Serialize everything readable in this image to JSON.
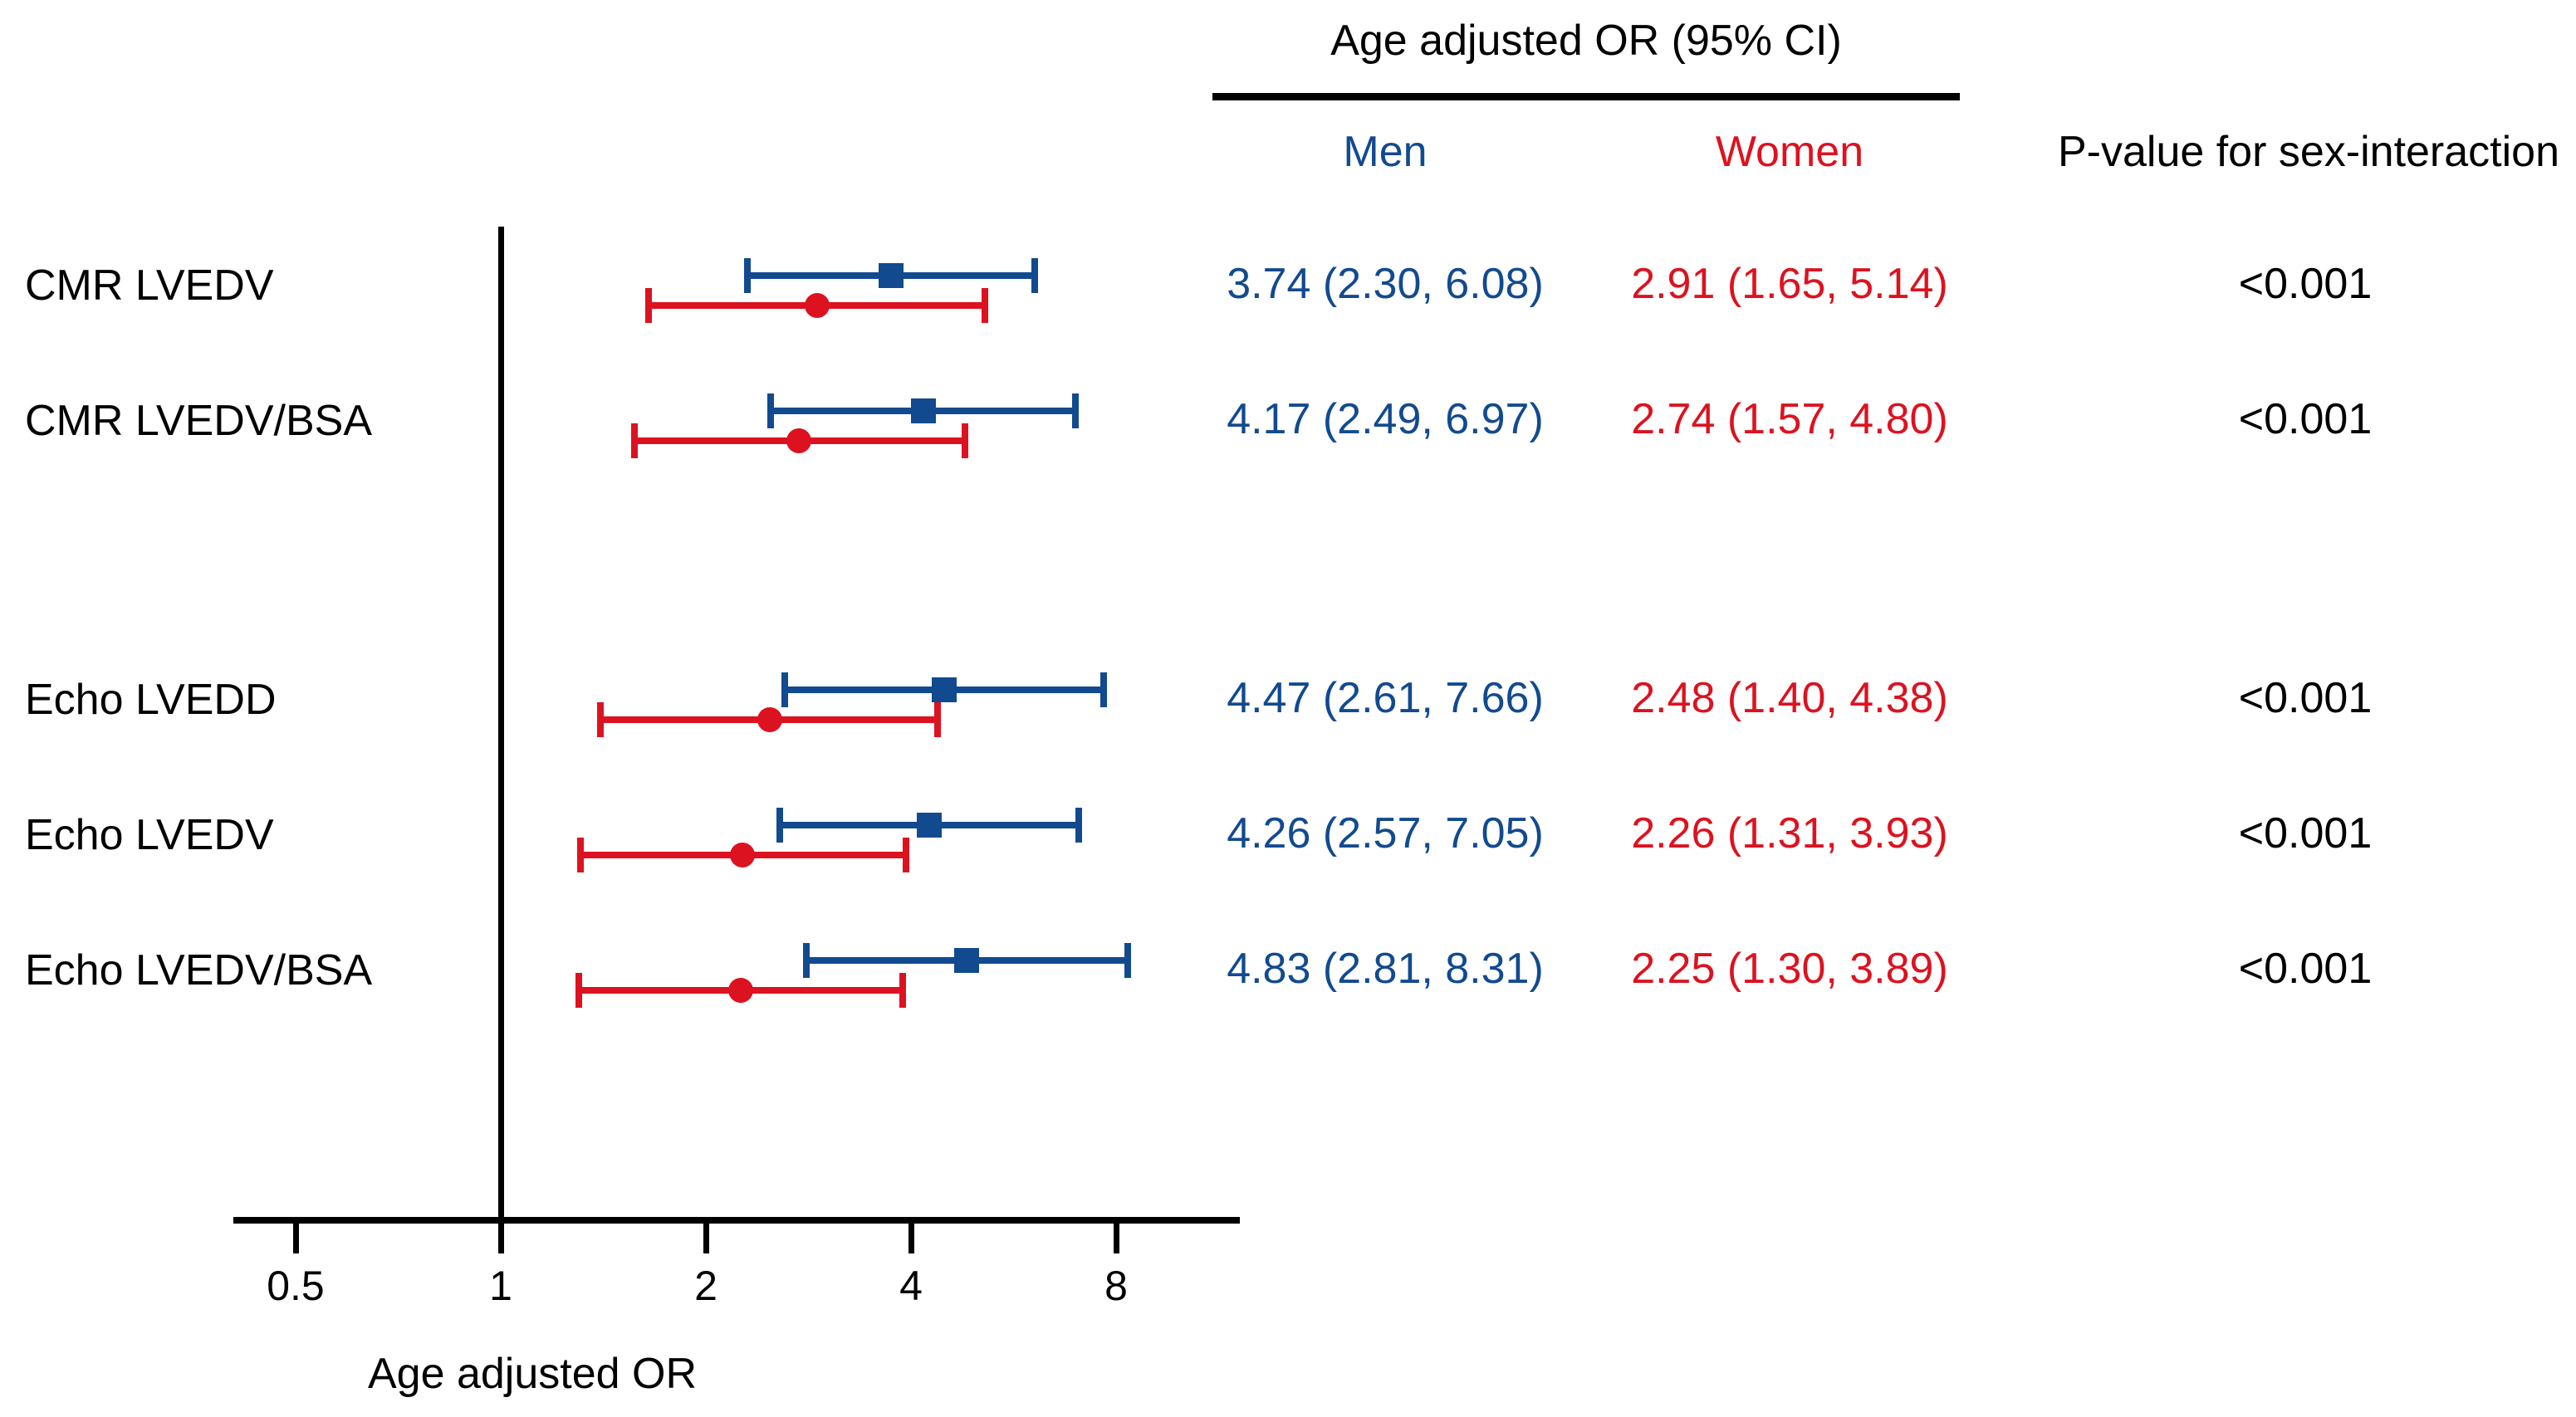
{
  "header": {
    "title": "Age adjusted OR (95% CI)",
    "col_men": "Men",
    "col_women": "Women",
    "col_pvalue": "P-value for sex-interaction"
  },
  "colors": {
    "men": "#124a8f",
    "women": "#dc1220",
    "text": "#000000"
  },
  "chart_data": {
    "type": "forest",
    "xscale": "log2",
    "xlabel": "Age adjusted OR",
    "xticks": [
      0.5,
      1,
      2,
      4,
      8
    ],
    "xtick_labels": [
      "0.5",
      "1",
      "2",
      "4",
      "8"
    ],
    "xlim": [
      0.39,
      12
    ],
    "reference_line": 1,
    "legend": [
      {
        "name": "Men",
        "marker": "square",
        "color": "#124a8f"
      },
      {
        "name": "Women",
        "marker": "circle",
        "color": "#dc1220"
      }
    ],
    "rows": [
      {
        "label": "CMR LVEDV",
        "men": {
          "or": 3.74,
          "lo": 2.3,
          "hi": 6.08,
          "text": "3.74 (2.30, 6.08)"
        },
        "women": {
          "or": 2.91,
          "lo": 1.65,
          "hi": 5.14,
          "text": "2.91 (1.65, 5.14)"
        },
        "pvalue": "<0.001"
      },
      {
        "label": "CMR LVEDV/BSA",
        "men": {
          "or": 4.17,
          "lo": 2.49,
          "hi": 6.97,
          "text": "4.17 (2.49, 6.97)"
        },
        "women": {
          "or": 2.74,
          "lo": 1.57,
          "hi": 4.8,
          "text": "2.74 (1.57, 4.80)"
        },
        "pvalue": "<0.001"
      },
      {
        "label": "Echo LVEDD",
        "men": {
          "or": 4.47,
          "lo": 2.61,
          "hi": 7.66,
          "text": "4.47 (2.61, 7.66)"
        },
        "women": {
          "or": 2.48,
          "lo": 1.4,
          "hi": 4.38,
          "text": "2.48 (1.40, 4.38)"
        },
        "pvalue": "<0.001"
      },
      {
        "label": "Echo LVEDV",
        "men": {
          "or": 4.26,
          "lo": 2.57,
          "hi": 7.05,
          "text": "4.26 (2.57, 7.05)"
        },
        "women": {
          "or": 2.26,
          "lo": 1.31,
          "hi": 3.93,
          "text": "2.26 (1.31, 3.93)"
        },
        "pvalue": "<0.001"
      },
      {
        "label": "Echo LVEDV/BSA",
        "men": {
          "or": 4.83,
          "lo": 2.81,
          "hi": 8.31,
          "text": "4.83 (2.81, 8.31)"
        },
        "women": {
          "or": 2.25,
          "lo": 1.3,
          "hi": 3.89,
          "text": "2.25 (1.30, 3.89)"
        },
        "pvalue": "<0.001"
      }
    ]
  }
}
